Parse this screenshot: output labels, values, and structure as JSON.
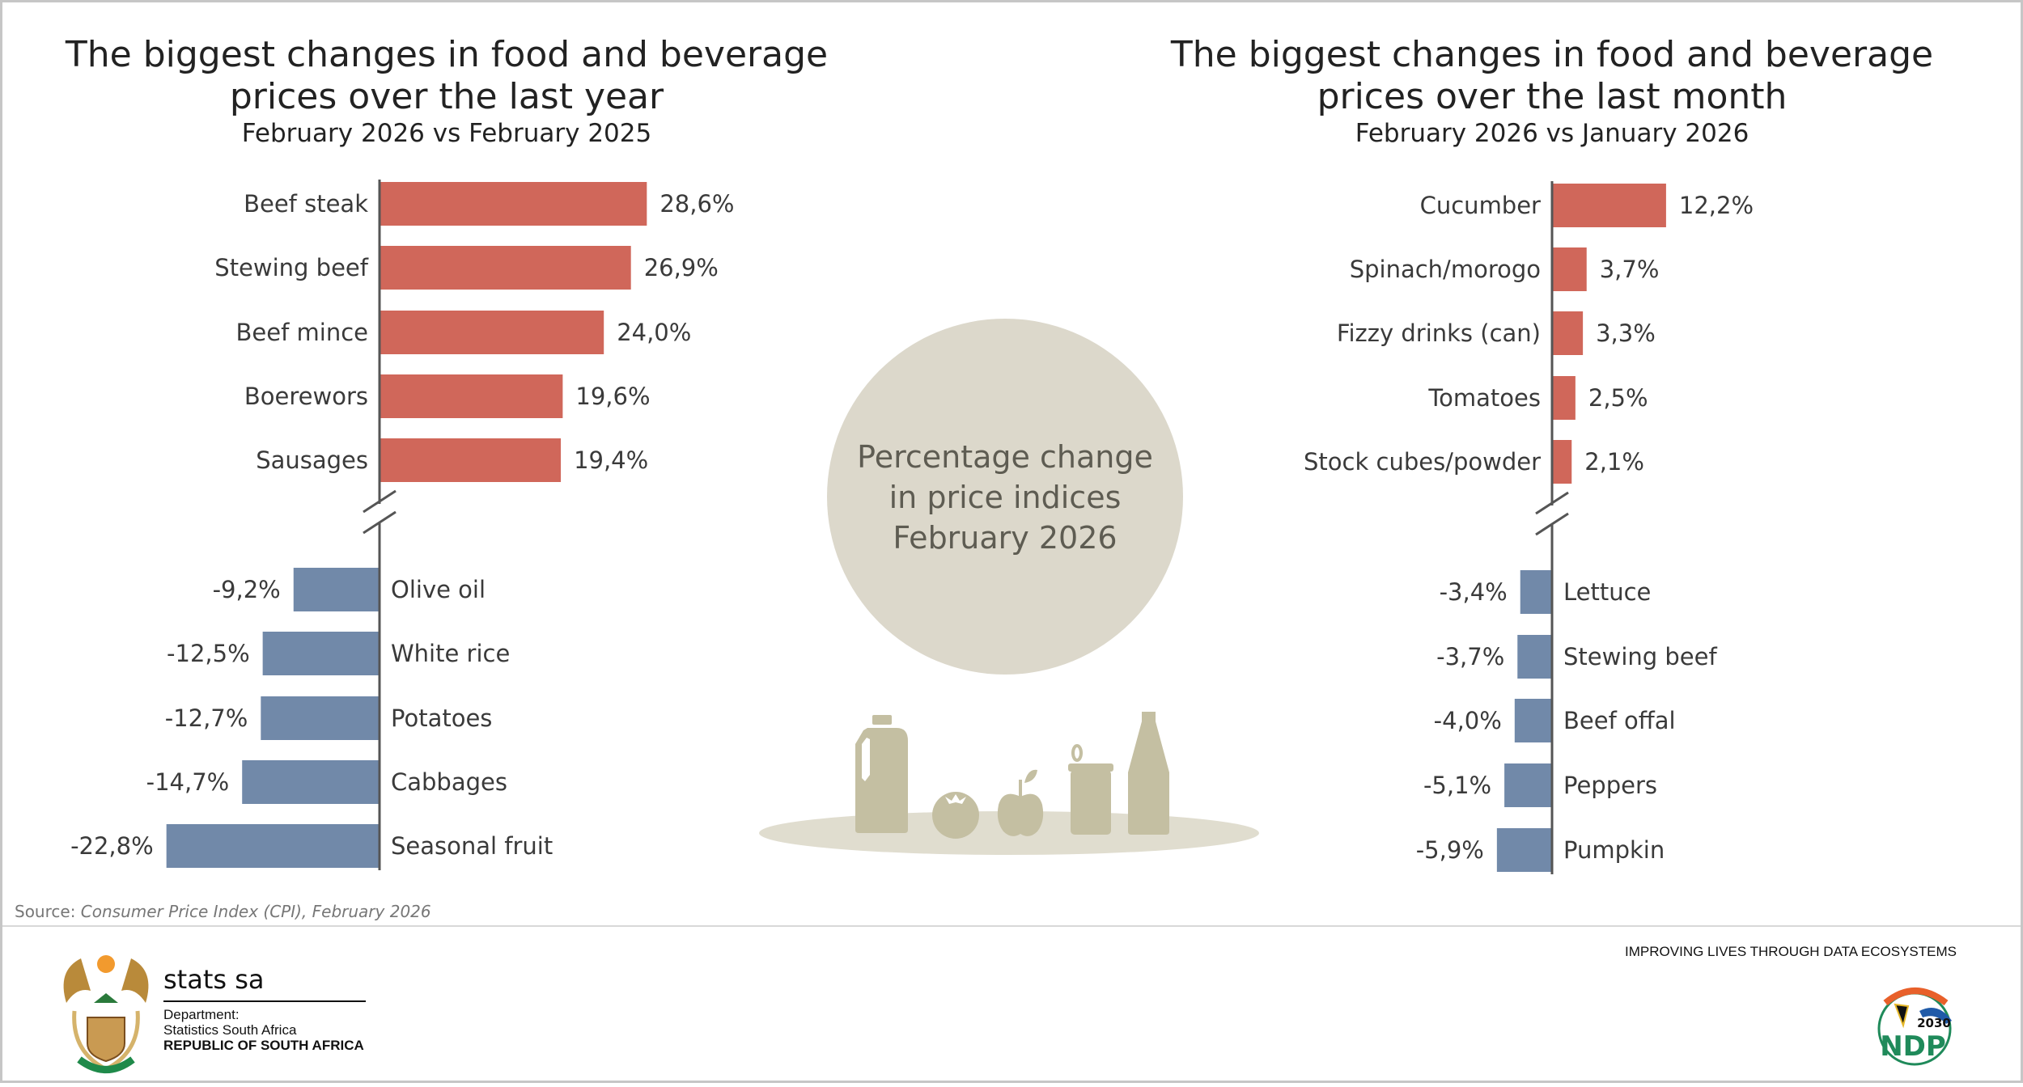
{
  "chart_data": [
    {
      "type": "bar",
      "orientation": "horizontal",
      "title": "The biggest changes in food and beverage prices over the last year",
      "title_lines": [
        "The biggest changes in food and beverage",
        "prices over the last year"
      ],
      "subtitle": "February 2026 vs February 2025",
      "axis_break": true,
      "categories": [
        "Beef steak",
        "Stewing beef",
        "Beef mince",
        "Boerewors",
        "Sausages",
        "Olive oil",
        "White rice",
        "Potatoes",
        "Cabbages",
        "Seasonal fruit"
      ],
      "values": [
        28.6,
        26.9,
        24.0,
        19.6,
        19.4,
        -9.2,
        -12.5,
        -12.7,
        -14.7,
        -22.8
      ],
      "value_labels": [
        "28,6%",
        "26,9%",
        "24,0%",
        "19,6%",
        "19,4%",
        "-9,2%",
        "-12,5%",
        "-12,7%",
        "-14,7%",
        "-22,8%"
      ],
      "unit": "%"
    },
    {
      "type": "bar",
      "orientation": "horizontal",
      "title": "The biggest changes in food and beverage prices over the last month",
      "title_lines": [
        "The biggest changes in food and beverage",
        "prices over the last month"
      ],
      "subtitle": "February 2026 vs January 2026",
      "axis_break": true,
      "categories": [
        "Cucumber",
        "Spinach/morogo",
        "Fizzy drinks (can)",
        "Tomatoes",
        "Stock cubes/powder",
        "Lettuce",
        "Stewing beef",
        "Beef offal",
        "Peppers",
        "Pumpkin"
      ],
      "values": [
        12.2,
        3.7,
        3.3,
        2.5,
        2.1,
        -3.4,
        -3.7,
        -4.0,
        -5.1,
        -5.9
      ],
      "value_labels": [
        "12,2%",
        "3,7%",
        "3,3%",
        "2,5%",
        "2,1%",
        "-3,4%",
        "-3,7%",
        "-4,0%",
        "-5,1%",
        "-5,9%"
      ],
      "unit": "%"
    }
  ],
  "colors": {
    "increase": "#d0675a",
    "decrease": "#7189a9",
    "circle": "#dcd8cb",
    "food": "#c4bfa2",
    "platter": "#e0ddcf"
  },
  "center": {
    "lines": [
      "Percentage change",
      "in price indices",
      "February 2026"
    ]
  },
  "source": {
    "prefix": "Source: ",
    "text": "Consumer Price Index (CPI), February 2026"
  },
  "footer": {
    "org": "stats sa",
    "dept_lines": [
      "Department:",
      "Statistics South Africa",
      "REPUBLIC OF SOUTH AFRICA"
    ],
    "tagline": "IMPROVING LIVES THROUGH DATA ECOSYSTEMS",
    "ndp_year": "2030",
    "ndp_text": "NDP"
  }
}
